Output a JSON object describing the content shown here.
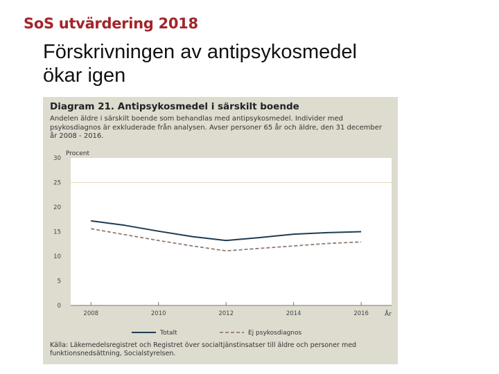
{
  "brand": "SoS utvärdering 2018",
  "slide_title_line1": "Förskrivningen av antipsykosmedel",
  "slide_title_line2": "ökar igen",
  "colors": {
    "brand": "#a3242b",
    "panel_bg": "#dedbcf",
    "plot_bg": "#ffffff",
    "series_total": "#1d3b52",
    "series_psychosis": "#8f7a6e"
  },
  "chart_data": {
    "type": "line",
    "title": "Diagram 21. Antipsykosmedel i särskilt boende",
    "subtitle": "Andelen äldre i särskilt boende som behandlas med antipsykosmedel. Individer med psykosdiagnos är exkluderade från analysen. Avser personer 65 år och äldre, den 31 december år 2008 - 2016.",
    "ylabel": "Procent",
    "xlabel": "År",
    "ylim": [
      0,
      30
    ],
    "yticks": [
      0,
      5,
      10,
      15,
      20,
      25,
      30
    ],
    "x": [
      2008,
      2009,
      2010,
      2011,
      2012,
      2013,
      2014,
      2015,
      2016
    ],
    "xtick_labels": [
      "2008",
      "2010",
      "2012",
      "2014",
      "2016"
    ],
    "xtick_values": [
      2008,
      2010,
      2012,
      2014,
      2016
    ],
    "series": [
      {
        "name": "Totalt",
        "style": "solid",
        "values": [
          17.2,
          16.3,
          15.1,
          14.0,
          13.2,
          13.8,
          14.5,
          14.8,
          15.0
        ]
      },
      {
        "name": "Ej psykosdiagnos",
        "style": "dashed",
        "values": [
          15.6,
          14.4,
          13.2,
          12.1,
          11.1,
          11.6,
          12.1,
          12.6,
          12.9
        ]
      }
    ],
    "source": "Källa: Läkemedelsregistret och Registret över socialtjänstinsatser till äldre och personer med funktionsnedsättning, Socialstyrelsen."
  }
}
